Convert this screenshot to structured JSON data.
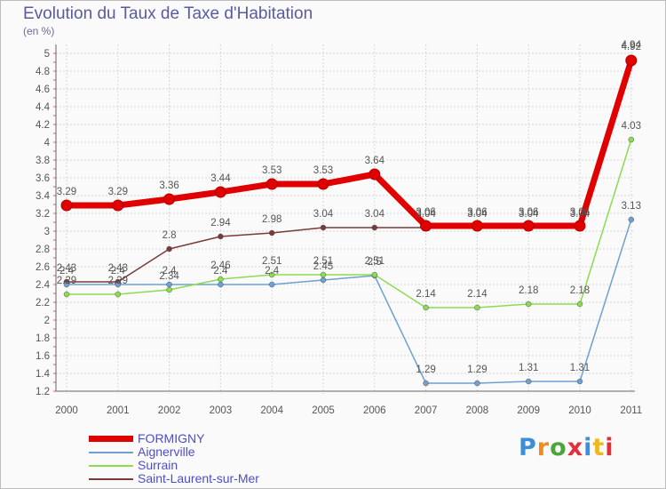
{
  "header": {
    "title": "Evolution du Taux de Taxe d'Habitation",
    "unit": "(en %)"
  },
  "colors": {
    "FORMIGNY": "#e00000",
    "Aignerville": "#6ea0d2",
    "Surrain": "#8cdc50",
    "Saint-Laurent-sur-Mer": "#7a3a3a"
  },
  "logo": {
    "text": "Proxiti",
    "letters": [
      "P",
      "r",
      "o",
      "x",
      "i",
      "t",
      "i"
    ],
    "colors": [
      "#3a8fd8",
      "#f08c1e",
      "#4aa83a",
      "#e0303a",
      "#3a8fd8",
      "#f0b81e",
      "#e0303a"
    ]
  },
  "chart_data": {
    "type": "line",
    "title": "Evolution du Taux de Taxe d'Habitation",
    "ylabel": "(en %)",
    "xlabel": "",
    "x": [
      "2000",
      "2001",
      "2002",
      "2003",
      "2004",
      "2005",
      "2006",
      "2007",
      "2008",
      "2009",
      "2010",
      "2011"
    ],
    "ylim": [
      1.2,
      5
    ],
    "yticks": [
      "1.2",
      "1.4",
      "1.6",
      "1.8",
      "2",
      "2.2",
      "2.4",
      "2.6",
      "2.8",
      "3",
      "3.2",
      "3.4",
      "3.6",
      "3.8",
      "4",
      "4.2",
      "4.4",
      "4.6",
      "4.8",
      "5"
    ],
    "legend_position": "bottom-left",
    "series": [
      {
        "name": "Saint-Laurent-sur-Mer",
        "color": "#7a3a3a",
        "values": [
          2.43,
          2.43,
          2.8,
          2.94,
          2.98,
          3.04,
          3.04,
          3.04,
          3.04,
          3.04,
          3.04,
          4.94
        ],
        "labels": [
          "2.43",
          "2.43",
          "2.8",
          "2.94",
          "2.98",
          "3.04",
          "3.04",
          "3.04",
          "3.04",
          "3.04",
          "3.04",
          "4.94"
        ]
      },
      {
        "name": "Aignerville",
        "color": "#6ea0d2",
        "values": [
          2.4,
          2.4,
          2.4,
          2.4,
          2.4,
          2.45,
          2.5,
          1.29,
          1.29,
          1.31,
          1.31,
          3.13
        ],
        "labels": [
          "2.4",
          "2.4",
          "2.4",
          "2.4",
          "2.4",
          "2.45",
          "2.5",
          "1.29",
          "1.29",
          "1.31",
          "1.31",
          "3.13"
        ]
      },
      {
        "name": "Surrain",
        "color": "#8cdc50",
        "values": [
          2.29,
          2.29,
          2.34,
          2.46,
          2.51,
          2.51,
          2.51,
          2.14,
          2.14,
          2.18,
          2.18,
          4.03
        ],
        "labels": [
          "2.29",
          "2.29",
          "2.34",
          "2.46",
          "2.51",
          "2.51",
          "2.51",
          "2.14",
          "2.14",
          "2.18",
          "2.18",
          "4.03"
        ]
      },
      {
        "name": "FORMIGNY",
        "color": "#e00000",
        "values": [
          3.29,
          3.29,
          3.36,
          3.44,
          3.53,
          3.53,
          3.64,
          3.06,
          3.06,
          3.06,
          3.06,
          4.92
        ],
        "labels": [
          "3.29",
          "3.29",
          "3.36",
          "3.44",
          "3.53",
          "3.53",
          "3.64",
          "3.06",
          "3.06",
          "3.06",
          "3.06",
          "4.92"
        ]
      }
    ],
    "legend": [
      "FORMIGNY",
      "Aignerville",
      "Surrain",
      "Saint-Laurent-sur-Mer"
    ]
  }
}
